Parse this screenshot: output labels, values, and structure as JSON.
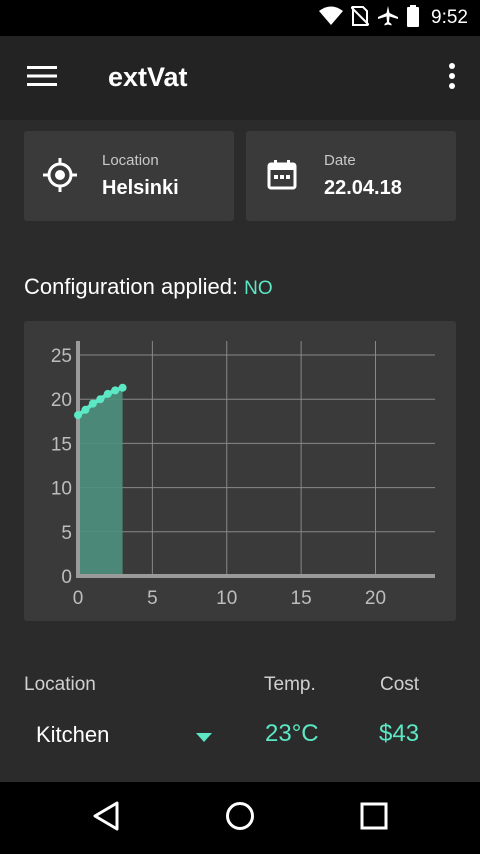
{
  "status_bar": {
    "time": "9:52"
  },
  "app_bar": {
    "title": "extVat"
  },
  "cards": {
    "location": {
      "label": "Location",
      "value": "Helsinki"
    },
    "date": {
      "label": "Date",
      "value": "22.04.18"
    }
  },
  "config": {
    "label": "Configuration applied:",
    "value": "NO"
  },
  "chart_data": {
    "type": "area",
    "x": [
      0,
      0.5,
      1,
      1.5,
      2,
      2.5,
      3
    ],
    "y": [
      18.2,
      18.8,
      19.5,
      20.0,
      20.6,
      21.0,
      21.3
    ],
    "xlim": [
      0,
      24
    ],
    "ylim": [
      0,
      25
    ],
    "x_ticks": [
      "0",
      "5",
      "10",
      "15",
      "20"
    ],
    "y_ticks": [
      "0",
      "5",
      "10",
      "15",
      "20",
      "25"
    ],
    "grid": true,
    "line_color": "#5ce8c4",
    "fill_color": "#4e917f"
  },
  "table": {
    "headers": {
      "location": "Location",
      "temp": "Temp.",
      "cost": "Cost"
    },
    "row": {
      "location": "Kitchen",
      "temp": "23°C",
      "cost": "$43"
    }
  },
  "colors": {
    "accent": "#5ce8c4",
    "background": "#2b2b2b",
    "card": "#3a3a3a",
    "app_bar": "#232323"
  },
  "icons": {
    "status": [
      "wifi-icon",
      "no-sim-icon",
      "airplane-icon",
      "battery-icon"
    ],
    "app_bar": [
      "menu-icon",
      "more-vert-icon"
    ],
    "cards": [
      "gps-icon",
      "calendar-icon"
    ],
    "nav": [
      "back-icon",
      "home-icon",
      "recents-icon"
    ]
  }
}
